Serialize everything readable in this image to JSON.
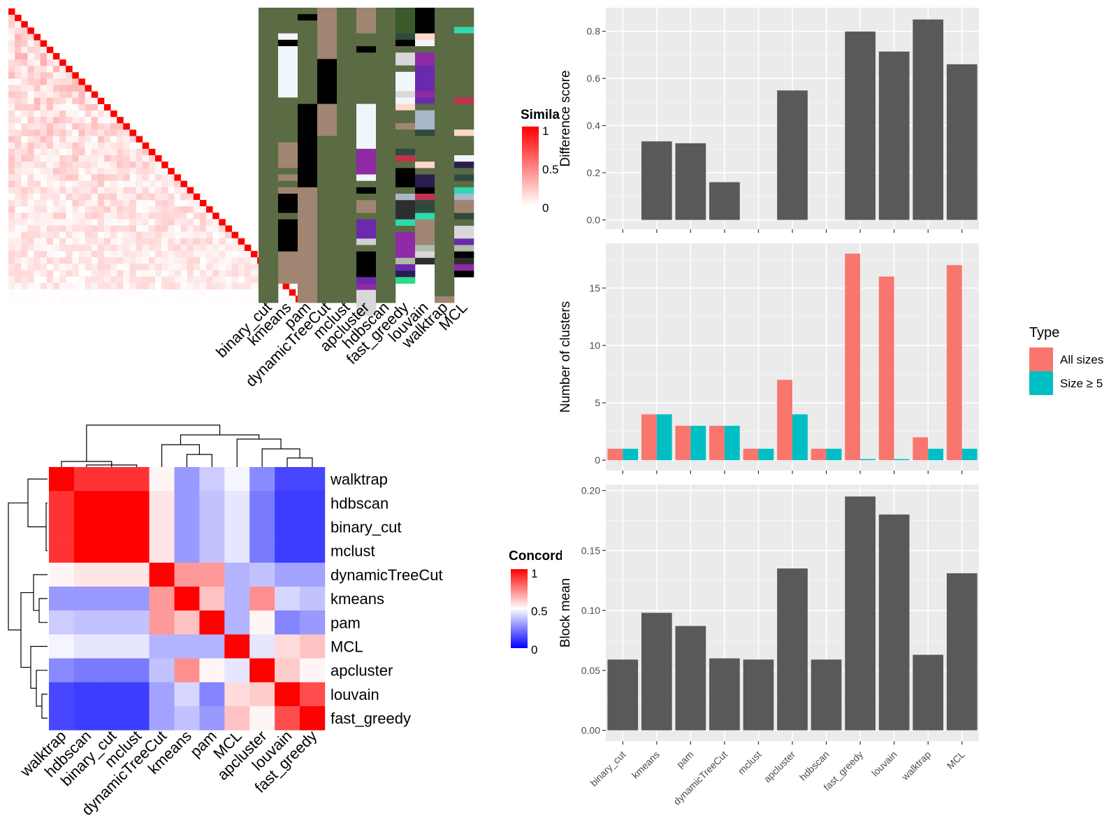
{
  "methods": [
    "binary_cut",
    "kmeans",
    "pam",
    "dynamicTreeCut",
    "mclust",
    "apcluster",
    "hdbscan",
    "fast_greedy",
    "louvain",
    "walktrap",
    "MCL"
  ],
  "chart_data": [
    {
      "type": "heatmap",
      "name": "similarity-heatmap",
      "legend_title": "Simila",
      "legend_ticks": [
        "1",
        "0.5",
        "0"
      ],
      "colors": {
        "low": "#FFFFFF",
        "high": "#FF0000"
      },
      "n": 46,
      "diagonal": 1,
      "off_diagonal_range": [
        0,
        0.35
      ]
    },
    {
      "type": "heatmap",
      "name": "cluster-assignments",
      "columns": [
        "binary_cut",
        "kmeans",
        "pam",
        "dynamicTreeCut",
        "mclust",
        "apcluster",
        "hdbscan",
        "fast_greedy",
        "louvain",
        "walktrap",
        "MCL"
      ],
      "rows": 46,
      "segments": [
        [
          [
            "#5B6B43",
            46
          ]
        ],
        [
          [
            "#5B6B43",
            4
          ],
          [
            "#F0F6FA",
            1
          ],
          [
            "#000000",
            1
          ],
          [
            "#F0F6FA",
            8
          ],
          [
            "#5B6B43",
            7
          ],
          [
            "#A08572",
            4
          ],
          [
            "#5B6B43",
            1
          ],
          [
            "#A08572",
            1
          ],
          [
            "#5B6B43",
            1
          ],
          [
            "#A08572",
            1
          ],
          [
            "#000000",
            3
          ],
          [
            "#5B6B43",
            1
          ],
          [
            "#000000",
            5
          ],
          [
            "#A08572",
            5
          ]
        ],
        [
          [
            "#5B6B43",
            1
          ],
          [
            "#000000",
            1
          ],
          [
            "#5B6B43",
            13
          ],
          [
            "#000000",
            13
          ],
          [
            "#A08572",
            18
          ]
        ],
        [
          [
            "#A08572",
            8
          ],
          [
            "#000000",
            7
          ],
          [
            "#A08572",
            5
          ],
          [
            "#5B6B43",
            26
          ]
        ],
        [
          [
            "#5B6B43",
            46
          ]
        ],
        [
          [
            "#A08572",
            4
          ],
          [
            "#5B6B43",
            2
          ],
          [
            "#000000",
            1
          ],
          [
            "#5B6B43",
            8
          ],
          [
            "#F0F6FA",
            7
          ],
          [
            "#8E2AA6",
            4
          ],
          [
            "#F0F6FA",
            1
          ],
          [
            "#5B6B43",
            1
          ],
          [
            "#000000",
            1
          ],
          [
            "#5B6B43",
            1
          ],
          [
            "#A08572",
            2
          ],
          [
            "#5B6B43",
            1
          ],
          [
            "#6B2AAE",
            3
          ],
          [
            "#D0D0D0",
            1
          ],
          [
            "#5B6B43",
            1
          ],
          [
            "#000000",
            4
          ],
          [
            "#6B2AAE",
            1
          ],
          [
            "#8E2AA6",
            1
          ],
          [
            "#D8D8D8",
            4
          ]
        ],
        [
          [
            "#5B6B43",
            46
          ]
        ],
        [
          [
            "#3A5A2C",
            4
          ],
          [
            "#2E4A3E",
            1
          ],
          [
            "#000000",
            1
          ],
          [
            "#5B6B43",
            1
          ],
          [
            "#D8D8D8",
            2
          ],
          [
            "#5B6B43",
            1
          ],
          [
            "#F0F6FA",
            3
          ],
          [
            "#D8D8D8",
            1
          ],
          [
            "#F0F6FA",
            1
          ],
          [
            "#FFD8CC",
            1
          ],
          [
            "#5B6B43",
            2
          ],
          [
            "#A08572",
            1
          ],
          [
            "#5B6B43",
            3
          ],
          [
            "#2E4A3E",
            1
          ],
          [
            "#C1324E",
            1
          ],
          [
            "#5B6B43",
            1
          ],
          [
            "#000000",
            3
          ],
          [
            "#5B6B43",
            1
          ],
          [
            "#A8B8C8",
            1
          ],
          [
            "#2E2E2E",
            3
          ],
          [
            "#2ED9B0",
            1
          ],
          [
            "#5B6B43",
            1
          ],
          [
            "#8E2AA6",
            4
          ],
          [
            "#B0BCA8",
            1
          ],
          [
            "#6B2AAE",
            1
          ],
          [
            "#2A1E50",
            1
          ],
          [
            "#2ED98A",
            1
          ]
        ],
        [
          [
            "#000000",
            4
          ],
          [
            "#FFD8CC",
            1
          ],
          [
            "#F0F6FA",
            1
          ],
          [
            "#5B6B43",
            1
          ],
          [
            "#8E2AA6",
            2
          ],
          [
            "#6B2AAE",
            4
          ],
          [
            "#8E2AA6",
            1
          ],
          [
            "#6B2AAE",
            1
          ],
          [
            "#5B6B43",
            1
          ],
          [
            "#A8B8C8",
            3
          ],
          [
            "#2E4A3E",
            1
          ],
          [
            "#5B6B43",
            4
          ],
          [
            "#FFD8CC",
            1
          ],
          [
            "#5B6B43",
            1
          ],
          [
            "#2A1E50",
            2
          ],
          [
            "#000000",
            1
          ],
          [
            "#C1324E",
            1
          ],
          [
            "#2E4A3E",
            2
          ],
          [
            "#2ED9B0",
            1
          ],
          [
            "#A08572",
            4
          ],
          [
            "#B0BCA8",
            1
          ],
          [
            "#D8D8D8",
            1
          ],
          [
            "#2E2E2E",
            1
          ]
        ],
        [
          [
            "#5B6B43",
            45
          ],
          [
            "#A08572",
            1
          ]
        ],
        [
          [
            "#5B6B43",
            3
          ],
          [
            "#2ED9B0",
            1
          ],
          [
            "#5B6B43",
            10
          ],
          [
            "#C1324E",
            1
          ],
          [
            "#5B6B43",
            4
          ],
          [
            "#FFD8CC",
            1
          ],
          [
            "#5B6B43",
            3
          ],
          [
            "#F0F6FA",
            1
          ],
          [
            "#2A1E50",
            1
          ],
          [
            "#5B6B43",
            1
          ],
          [
            "#2E4A3E",
            1
          ],
          [
            "#5B6B43",
            1
          ],
          [
            "#2ED9B0",
            1
          ],
          [
            "#A8B8C8",
            1
          ],
          [
            "#A08572",
            2
          ],
          [
            "#2E4A3E",
            1
          ],
          [
            "#5B6B43",
            1
          ],
          [
            "#D8D8D8",
            2
          ],
          [
            "#6B2AAE",
            1
          ],
          [
            "#B0BCA8",
            1
          ],
          [
            "#000000",
            1
          ],
          [
            "#2E2E2E",
            1
          ],
          [
            "#8E2AA6",
            1
          ],
          [
            "#000000",
            1
          ]
        ]
      ]
    },
    {
      "type": "heatmap",
      "name": "concordance-heatmap",
      "legend_title": "Concord",
      "legend_ticks": [
        "1",
        "0.5",
        "0"
      ],
      "colors": {
        "low": "#0000FF",
        "mid": "#FFFFFF",
        "high": "#FF0000"
      },
      "labels": [
        "walktrap",
        "hdbscan",
        "binary_cut",
        "mclust",
        "dynamicTreeCut",
        "kmeans",
        "pam",
        "MCL",
        "apcluster",
        "louvain",
        "fast_greedy"
      ],
      "values": [
        [
          1.0,
          0.9,
          0.9,
          0.9,
          0.52,
          0.3,
          0.4,
          0.48,
          0.27,
          0.14,
          0.14
        ],
        [
          0.9,
          1.0,
          1.0,
          1.0,
          0.55,
          0.3,
          0.38,
          0.45,
          0.24,
          0.12,
          0.12
        ],
        [
          0.9,
          1.0,
          1.0,
          1.0,
          0.55,
          0.3,
          0.38,
          0.45,
          0.24,
          0.12,
          0.12
        ],
        [
          0.9,
          1.0,
          1.0,
          1.0,
          0.55,
          0.3,
          0.38,
          0.45,
          0.24,
          0.12,
          0.12
        ],
        [
          0.52,
          0.55,
          0.55,
          0.55,
          1.0,
          0.7,
          0.7,
          0.35,
          0.38,
          0.32,
          0.32
        ],
        [
          0.3,
          0.3,
          0.3,
          0.3,
          0.7,
          1.0,
          0.62,
          0.35,
          0.72,
          0.42,
          0.38
        ],
        [
          0.4,
          0.38,
          0.38,
          0.38,
          0.7,
          0.62,
          1.0,
          0.35,
          0.52,
          0.26,
          0.3
        ],
        [
          0.48,
          0.45,
          0.45,
          0.45,
          0.35,
          0.35,
          0.35,
          1.0,
          0.45,
          0.57,
          0.62
        ],
        [
          0.27,
          0.24,
          0.24,
          0.24,
          0.38,
          0.72,
          0.52,
          0.45,
          1.0,
          0.6,
          0.52
        ],
        [
          0.14,
          0.12,
          0.12,
          0.12,
          0.32,
          0.42,
          0.26,
          0.57,
          0.6,
          1.0,
          0.85
        ],
        [
          0.14,
          0.12,
          0.12,
          0.12,
          0.32,
          0.38,
          0.3,
          0.62,
          0.52,
          0.85,
          1.0
        ]
      ]
    },
    {
      "type": "bar",
      "name": "difference-score",
      "ylabel": "Difference score",
      "categories": [
        "binary_cut",
        "kmeans",
        "pam",
        "dynamicTreeCut",
        "mclust",
        "apcluster",
        "hdbscan",
        "fast_greedy",
        "louvain",
        "walktrap",
        "MCL"
      ],
      "values": [
        0,
        0.333,
        0.325,
        0.16,
        0,
        0.549,
        0,
        0.799,
        0.714,
        0.85,
        0.66
      ],
      "ylim": [
        -0.04,
        0.9
      ],
      "yticks": [
        0.0,
        0.2,
        0.4,
        0.6,
        0.8
      ],
      "ytick_labels": [
        "0.0",
        "0.2",
        "0.4",
        "0.6",
        "0.8"
      ],
      "color": "#595959"
    },
    {
      "type": "bar",
      "name": "number-of-clusters",
      "ylabel": "Number of clusters",
      "categories": [
        "binary_cut",
        "kmeans",
        "pam",
        "dynamicTreeCut",
        "mclust",
        "apcluster",
        "hdbscan",
        "fast_greedy",
        "louvain",
        "walktrap",
        "MCL"
      ],
      "series": [
        {
          "name": "All sizes",
          "color": "#F8766D",
          "values": [
            1,
            4,
            3,
            3,
            1,
            7,
            1,
            18,
            16,
            2,
            17
          ]
        },
        {
          "name": "Size ≥ 5",
          "color": "#00BFC4",
          "values": [
            1,
            4,
            3,
            3,
            1,
            4,
            1,
            0.1,
            0.1,
            1,
            1
          ]
        }
      ],
      "ylim": [
        -0.9,
        18.9
      ],
      "yticks": [
        0,
        5,
        10,
        15
      ],
      "ytick_labels": [
        "0",
        "5",
        "10",
        "15"
      ],
      "legend_title": "Type",
      "legend_position": "right"
    },
    {
      "type": "bar",
      "name": "block-mean",
      "ylabel": "Block mean",
      "categories": [
        "binary_cut",
        "kmeans",
        "pam",
        "dynamicTreeCut",
        "mclust",
        "apcluster",
        "hdbscan",
        "fast_greedy",
        "louvain",
        "walktrap",
        "MCL"
      ],
      "values": [
        0.059,
        0.098,
        0.087,
        0.06,
        0.059,
        0.135,
        0.059,
        0.195,
        0.18,
        0.063,
        0.131
      ],
      "ylim": [
        -0.009,
        0.205
      ],
      "yticks": [
        0.0,
        0.05,
        0.1,
        0.15,
        0.2
      ],
      "ytick_labels": [
        "0.00",
        "0.05",
        "0.10",
        "0.15",
        "0.20"
      ],
      "color": "#595959"
    }
  ]
}
